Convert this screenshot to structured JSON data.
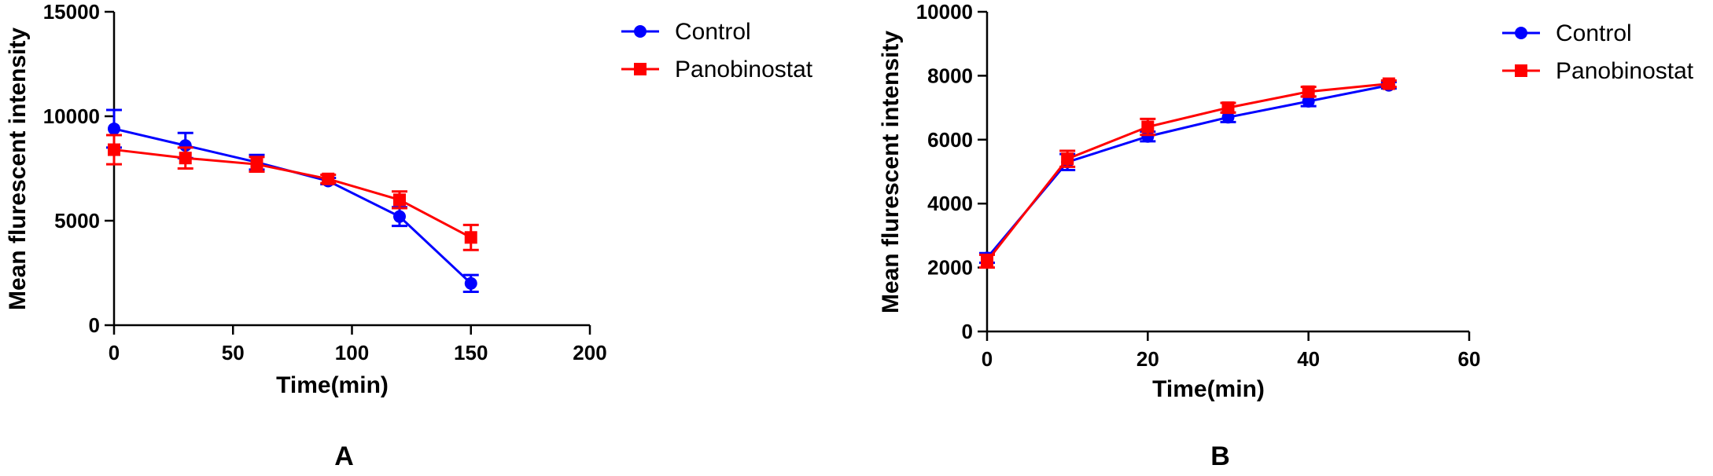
{
  "chart_data": [
    {
      "type": "line",
      "panel_label": "A",
      "xlabel": "Time(min)",
      "ylabel": "Mean flurescent intensity",
      "xlim": [
        0,
        200
      ],
      "ylim": [
        0,
        15000
      ],
      "xticks": [
        0,
        50,
        100,
        150,
        200
      ],
      "yticks": [
        0,
        5000,
        10000,
        15000
      ],
      "legend_placement": "top-right",
      "series": [
        {
          "name": "Control",
          "color": "#0000ff",
          "marker": "circle",
          "x": [
            0,
            30,
            60,
            90,
            120,
            150
          ],
          "y": [
            9400,
            8600,
            7800,
            6900,
            5200,
            2000
          ],
          "err": [
            900,
            600,
            350,
            150,
            450,
            400
          ]
        },
        {
          "name": "Panobinostat",
          "color": "#ff0000",
          "marker": "square",
          "x": [
            0,
            30,
            60,
            90,
            120,
            150
          ],
          "y": [
            8400,
            8000,
            7700,
            7000,
            6000,
            4200
          ],
          "err": [
            700,
            500,
            350,
            200,
            400,
            600
          ]
        }
      ]
    },
    {
      "type": "line",
      "panel_label": "B",
      "xlabel": "Time(min)",
      "ylabel": "Mean flurescent intensity",
      "xlim": [
        0,
        60
      ],
      "ylim": [
        0,
        10000
      ],
      "xticks": [
        0,
        20,
        40,
        60
      ],
      "yticks": [
        0,
        2000,
        4000,
        6000,
        8000,
        10000
      ],
      "legend_placement": "top-right",
      "series": [
        {
          "name": "Control",
          "color": "#0000ff",
          "marker": "circle",
          "x": [
            0,
            10,
            20,
            30,
            40,
            50
          ],
          "y": [
            2300,
            5300,
            6100,
            6700,
            7200,
            7700
          ],
          "err": [
            150,
            250,
            150,
            150,
            150,
            100
          ]
        },
        {
          "name": "Panobinostat",
          "color": "#ff0000",
          "marker": "square",
          "x": [
            0,
            10,
            20,
            30,
            40,
            50
          ],
          "y": [
            2200,
            5400,
            6400,
            7000,
            7500,
            7750
          ],
          "err": [
            200,
            250,
            250,
            150,
            150,
            100
          ]
        }
      ]
    }
  ]
}
